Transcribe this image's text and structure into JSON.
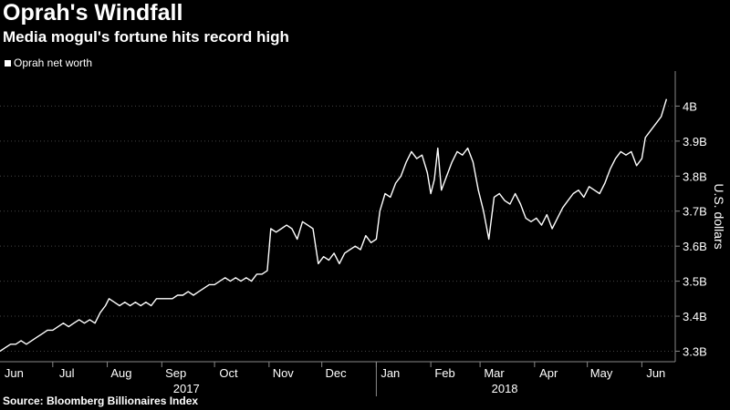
{
  "header": {
    "title": "Oprah's Windfall",
    "subtitle": "Media mogul's fortune hits record high"
  },
  "legend": {
    "label": "Oprah net worth",
    "color": "#ffffff"
  },
  "source": "Source: Bloomberg Billionaires Index",
  "chart_data": {
    "type": "line",
    "ylabel": "U.S. dollars",
    "ylim": [
      3.27,
      4.1
    ],
    "yticks": [
      {
        "value": 3.3,
        "label": "3.3B"
      },
      {
        "value": 3.4,
        "label": "3.4B"
      },
      {
        "value": 3.5,
        "label": "3.5B"
      },
      {
        "value": 3.6,
        "label": "3.6B"
      },
      {
        "value": 3.7,
        "label": "3.7B"
      },
      {
        "value": 3.8,
        "label": "3.8B"
      },
      {
        "value": 3.9,
        "label": "3.9B"
      },
      {
        "value": 4.0,
        "label": "4B"
      }
    ],
    "xlim": [
      "2017-06-01",
      "2018-06-20"
    ],
    "month_labels": [
      {
        "label": "Jun",
        "date": "2017-06-09"
      },
      {
        "label": "Jul",
        "date": "2017-07-09"
      },
      {
        "label": "Aug",
        "date": "2017-08-09"
      },
      {
        "label": "Sep",
        "date": "2017-09-09"
      },
      {
        "label": "Oct",
        "date": "2017-10-09"
      },
      {
        "label": "Nov",
        "date": "2017-11-09"
      },
      {
        "label": "Dec",
        "date": "2017-12-09"
      },
      {
        "label": "Jan",
        "date": "2018-01-09"
      },
      {
        "label": "Feb",
        "date": "2018-02-09"
      },
      {
        "label": "Mar",
        "date": "2018-03-09"
      },
      {
        "label": "Apr",
        "date": "2018-04-09"
      },
      {
        "label": "May",
        "date": "2018-05-09"
      },
      {
        "label": "Jun",
        "date": "2018-06-09"
      }
    ],
    "month_ticks": [
      "2017-07-01",
      "2017-08-01",
      "2017-09-01",
      "2017-10-01",
      "2017-11-01",
      "2017-12-01",
      "2018-01-01",
      "2018-02-01",
      "2018-03-01",
      "2018-04-01",
      "2018-05-01",
      "2018-06-01"
    ],
    "year_labels": [
      {
        "label": "2017",
        "date": "2017-09-15"
      },
      {
        "label": "2018",
        "date": "2018-03-15"
      }
    ],
    "year_divider": "2018-01-01",
    "series": [
      {
        "name": "Oprah net worth",
        "color": "#ffffff",
        "points": [
          [
            "2017-06-01",
            3.3
          ],
          [
            "2017-06-04",
            3.31
          ],
          [
            "2017-06-07",
            3.32
          ],
          [
            "2017-06-10",
            3.32
          ],
          [
            "2017-06-13",
            3.33
          ],
          [
            "2017-06-16",
            3.32
          ],
          [
            "2017-06-19",
            3.33
          ],
          [
            "2017-06-22",
            3.34
          ],
          [
            "2017-06-25",
            3.35
          ],
          [
            "2017-06-28",
            3.36
          ],
          [
            "2017-07-01",
            3.36
          ],
          [
            "2017-07-04",
            3.37
          ],
          [
            "2017-07-07",
            3.38
          ],
          [
            "2017-07-10",
            3.37
          ],
          [
            "2017-07-13",
            3.38
          ],
          [
            "2017-07-16",
            3.39
          ],
          [
            "2017-07-19",
            3.38
          ],
          [
            "2017-07-22",
            3.39
          ],
          [
            "2017-07-25",
            3.38
          ],
          [
            "2017-07-28",
            3.41
          ],
          [
            "2017-07-31",
            3.43
          ],
          [
            "2017-08-02",
            3.45
          ],
          [
            "2017-08-05",
            3.44
          ],
          [
            "2017-08-08",
            3.43
          ],
          [
            "2017-08-11",
            3.44
          ],
          [
            "2017-08-14",
            3.43
          ],
          [
            "2017-08-17",
            3.44
          ],
          [
            "2017-08-20",
            3.43
          ],
          [
            "2017-08-23",
            3.44
          ],
          [
            "2017-08-26",
            3.43
          ],
          [
            "2017-08-29",
            3.45
          ],
          [
            "2017-09-01",
            3.45
          ],
          [
            "2017-09-04",
            3.45
          ],
          [
            "2017-09-07",
            3.45
          ],
          [
            "2017-09-10",
            3.46
          ],
          [
            "2017-09-13",
            3.46
          ],
          [
            "2017-09-16",
            3.47
          ],
          [
            "2017-09-19",
            3.46
          ],
          [
            "2017-09-22",
            3.47
          ],
          [
            "2017-09-25",
            3.48
          ],
          [
            "2017-09-28",
            3.49
          ],
          [
            "2017-10-01",
            3.49
          ],
          [
            "2017-10-04",
            3.5
          ],
          [
            "2017-10-07",
            3.51
          ],
          [
            "2017-10-10",
            3.5
          ],
          [
            "2017-10-13",
            3.51
          ],
          [
            "2017-10-16",
            3.5
          ],
          [
            "2017-10-19",
            3.51
          ],
          [
            "2017-10-22",
            3.5
          ],
          [
            "2017-10-25",
            3.52
          ],
          [
            "2017-10-28",
            3.52
          ],
          [
            "2017-10-31",
            3.53
          ],
          [
            "2017-11-02",
            3.65
          ],
          [
            "2017-11-05",
            3.64
          ],
          [
            "2017-11-08",
            3.65
          ],
          [
            "2017-11-11",
            3.66
          ],
          [
            "2017-11-14",
            3.65
          ],
          [
            "2017-11-17",
            3.62
          ],
          [
            "2017-11-20",
            3.67
          ],
          [
            "2017-11-23",
            3.66
          ],
          [
            "2017-11-26",
            3.65
          ],
          [
            "2017-11-29",
            3.55
          ],
          [
            "2017-12-02",
            3.57
          ],
          [
            "2017-12-05",
            3.56
          ],
          [
            "2017-12-08",
            3.58
          ],
          [
            "2017-12-11",
            3.55
          ],
          [
            "2017-12-14",
            3.58
          ],
          [
            "2017-12-17",
            3.59
          ],
          [
            "2017-12-20",
            3.6
          ],
          [
            "2017-12-23",
            3.59
          ],
          [
            "2017-12-26",
            3.63
          ],
          [
            "2017-12-29",
            3.61
          ],
          [
            "2018-01-01",
            3.62
          ],
          [
            "2018-01-03",
            3.7
          ],
          [
            "2018-01-06",
            3.75
          ],
          [
            "2018-01-09",
            3.74
          ],
          [
            "2018-01-12",
            3.78
          ],
          [
            "2018-01-15",
            3.8
          ],
          [
            "2018-01-18",
            3.84
          ],
          [
            "2018-01-21",
            3.87
          ],
          [
            "2018-01-24",
            3.85
          ],
          [
            "2018-01-27",
            3.86
          ],
          [
            "2018-01-30",
            3.81
          ],
          [
            "2018-02-01",
            3.75
          ],
          [
            "2018-02-03",
            3.79
          ],
          [
            "2018-02-05",
            3.88
          ],
          [
            "2018-02-07",
            3.76
          ],
          [
            "2018-02-10",
            3.8
          ],
          [
            "2018-02-13",
            3.84
          ],
          [
            "2018-02-16",
            3.87
          ],
          [
            "2018-02-19",
            3.86
          ],
          [
            "2018-02-22",
            3.88
          ],
          [
            "2018-02-25",
            3.84
          ],
          [
            "2018-02-28",
            3.76
          ],
          [
            "2018-03-03",
            3.7
          ],
          [
            "2018-03-06",
            3.62
          ],
          [
            "2018-03-09",
            3.74
          ],
          [
            "2018-03-12",
            3.75
          ],
          [
            "2018-03-15",
            3.73
          ],
          [
            "2018-03-18",
            3.72
          ],
          [
            "2018-03-21",
            3.75
          ],
          [
            "2018-03-24",
            3.72
          ],
          [
            "2018-03-27",
            3.68
          ],
          [
            "2018-03-30",
            3.67
          ],
          [
            "2018-04-02",
            3.68
          ],
          [
            "2018-04-05",
            3.66
          ],
          [
            "2018-04-08",
            3.69
          ],
          [
            "2018-04-11",
            3.65
          ],
          [
            "2018-04-14",
            3.68
          ],
          [
            "2018-04-17",
            3.71
          ],
          [
            "2018-04-20",
            3.73
          ],
          [
            "2018-04-23",
            3.75
          ],
          [
            "2018-04-26",
            3.76
          ],
          [
            "2018-04-29",
            3.74
          ],
          [
            "2018-05-02",
            3.77
          ],
          [
            "2018-05-05",
            3.76
          ],
          [
            "2018-05-08",
            3.75
          ],
          [
            "2018-05-11",
            3.78
          ],
          [
            "2018-05-14",
            3.82
          ],
          [
            "2018-05-17",
            3.85
          ],
          [
            "2018-05-20",
            3.87
          ],
          [
            "2018-05-23",
            3.86
          ],
          [
            "2018-05-26",
            3.87
          ],
          [
            "2018-05-29",
            3.83
          ],
          [
            "2018-06-01",
            3.85
          ],
          [
            "2018-06-03",
            3.91
          ],
          [
            "2018-06-06",
            3.93
          ],
          [
            "2018-06-09",
            3.95
          ],
          [
            "2018-06-12",
            3.97
          ],
          [
            "2018-06-15",
            4.02
          ]
        ]
      }
    ]
  }
}
